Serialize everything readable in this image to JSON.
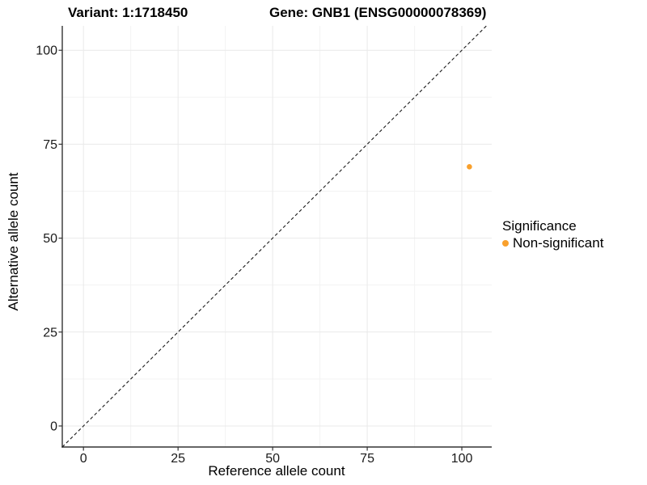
{
  "chart_data": {
    "type": "scatter",
    "title_left": "Variant: 1:1718450",
    "title_right": "Gene: GNB1 (ENSG00000078369)",
    "xlabel": "Reference allele count",
    "ylabel": "Alternative allele count",
    "xlim": [
      -5.6,
      107.9
    ],
    "ylim": [
      -5.6,
      106.5
    ],
    "xticks": [
      0,
      25,
      50,
      75,
      100
    ],
    "yticks": [
      0,
      25,
      50,
      75,
      100
    ],
    "minor_ticks": [
      12.5,
      37.5,
      62.5,
      87.5
    ],
    "grid": "major+minor",
    "identity_line": {
      "style": "dashed",
      "slope": 1,
      "intercept": 0,
      "color": "#1a1a1a"
    },
    "points": [
      {
        "x": 102,
        "y": 69,
        "series": "Non-significant",
        "color": "#F9A02C"
      }
    ],
    "legend": {
      "title": "Significance",
      "position": "right",
      "entries": [
        {
          "label": "Non-significant",
          "color": "#F9A02C"
        }
      ]
    },
    "colors": {
      "grid_major": "#E9E9E9",
      "grid_minor": "#F3F3F3",
      "axis_line": "#333333",
      "tick_text": "#1a1a1a"
    }
  }
}
